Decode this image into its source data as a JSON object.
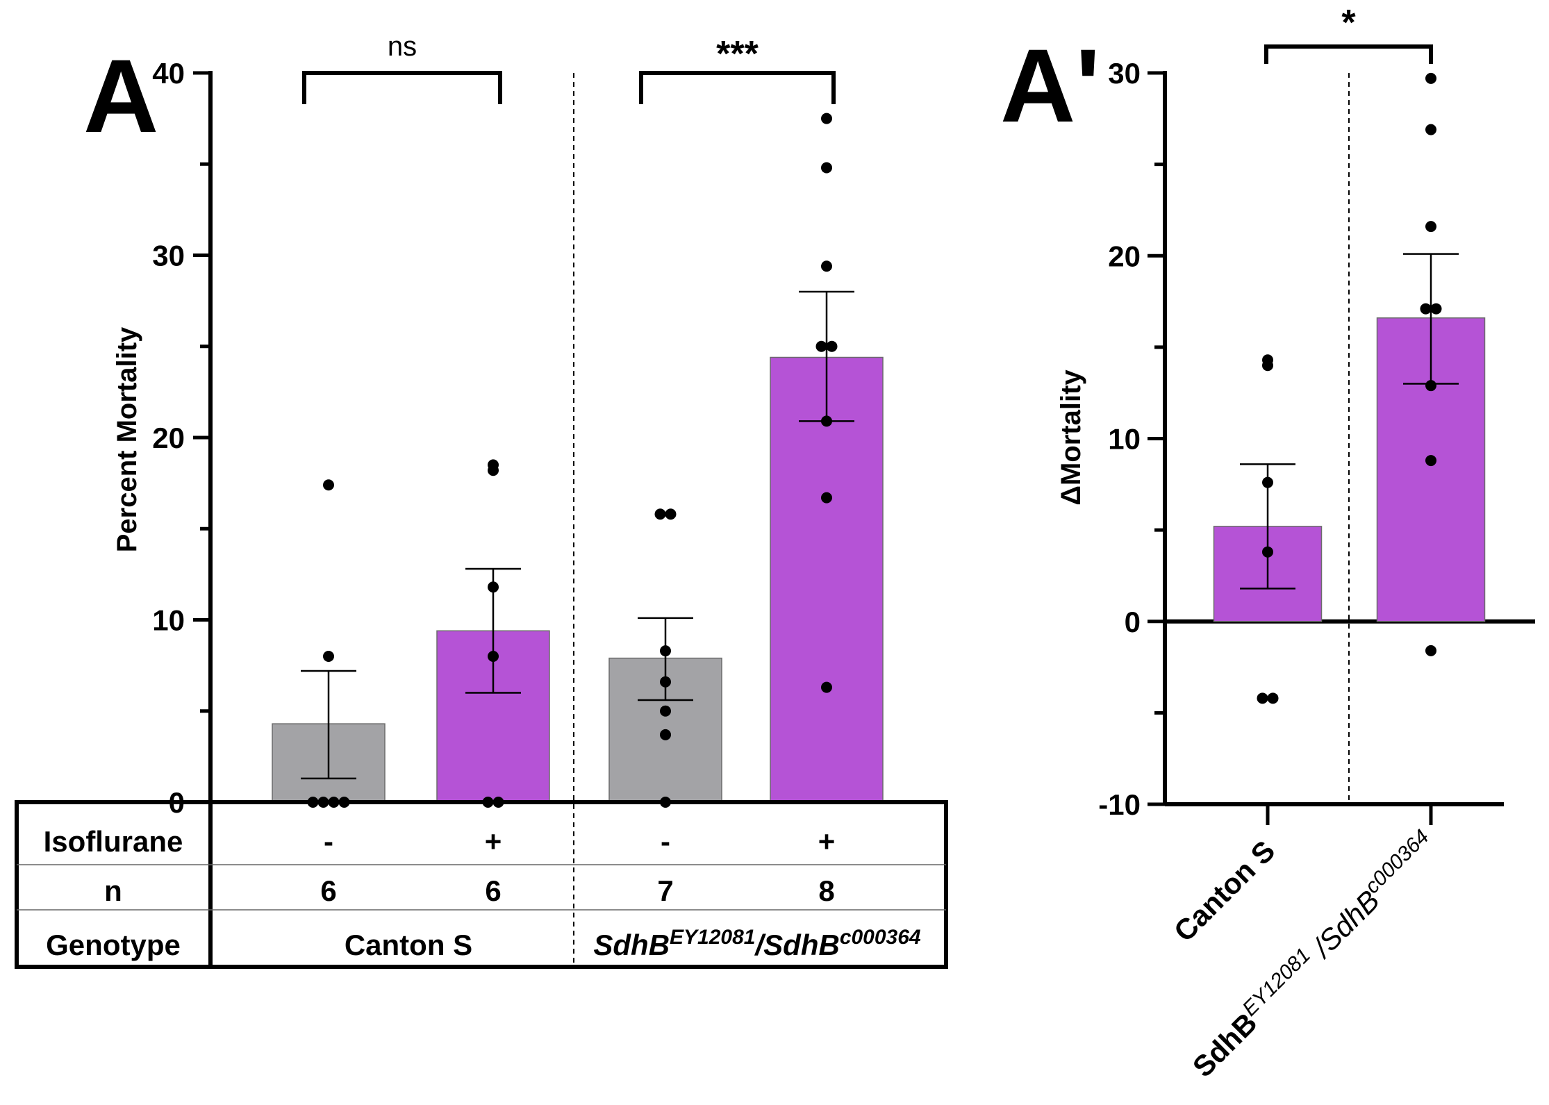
{
  "panel_a_label": "A",
  "panel_a2_label": "A'",
  "chart_data": [
    {
      "type": "bar",
      "panel": "A",
      "ylabel": "Percent Mortality",
      "ylim": [
        0,
        40
      ],
      "yticks": [
        "0",
        "10",
        "20",
        "30",
        "40"
      ],
      "colors": {
        "control": "#a3a3a6",
        "isoflurane": "#b553d6"
      },
      "bars": [
        {
          "genotype": "Canton S",
          "isoflurane": "-",
          "n": "6",
          "mean": 4.3,
          "sem_low": 1.3,
          "sem_high": 7.2,
          "points": [
            17.4,
            8.0,
            0,
            0,
            0,
            0
          ]
        },
        {
          "genotype": "Canton S",
          "isoflurane": "+",
          "n": "6",
          "mean": 9.4,
          "sem_low": 6.0,
          "sem_high": 12.8,
          "points": [
            18.2,
            18.5,
            11.8,
            8.0,
            0,
            0
          ]
        },
        {
          "genotype": "SdhB",
          "isoflurane": "-",
          "n": "7",
          "mean": 7.9,
          "sem_low": 5.6,
          "sem_high": 10.1,
          "points": [
            15.8,
            15.8,
            8.3,
            6.6,
            5.0,
            3.7,
            0
          ]
        },
        {
          "genotype": "SdhB",
          "isoflurane": "+",
          "n": "8",
          "mean": 24.4,
          "sem_low": 20.9,
          "sem_high": 28.0,
          "points": [
            37.5,
            34.8,
            29.4,
            25.0,
            25.0,
            20.9,
            16.7,
            6.3
          ]
        }
      ],
      "significance": [
        {
          "groups": [
            0,
            1
          ],
          "label": "ns"
        },
        {
          "groups": [
            2,
            3
          ],
          "label": "***"
        }
      ],
      "table": {
        "row_labels": {
          "isoflurane": "Isoflurane",
          "n": "n",
          "genotype": "Genotype"
        },
        "genotype_1": "Canton S",
        "genotype_2_parts": {
          "base_1": "SdhB",
          "sup_1": "EY12081",
          "sep": "/SdhB",
          "sup_2": "c000364"
        }
      }
    },
    {
      "type": "bar",
      "panel": "A'",
      "ylabel": "ΔMortality",
      "ylim": [
        -10,
        30
      ],
      "yticks": [
        "-10",
        "0",
        "10",
        "20",
        "30"
      ],
      "categories": [
        "Canton S",
        "SdhB"
      ],
      "xlabel_2_parts": {
        "base_1": "SdhB",
        "sup_1": "EY12081",
        "sep": " /SdhB",
        "sup_2": "c000364"
      },
      "bars": [
        {
          "mean": 5.2,
          "sem_low": 1.8,
          "sem_high": 8.6,
          "points": [
            14.0,
            14.3,
            7.6,
            3.8,
            -4.2,
            -4.2
          ]
        },
        {
          "mean": 16.6,
          "sem_low": 13.0,
          "sem_high": 20.1,
          "points": [
            29.7,
            26.9,
            21.6,
            17.1,
            17.1,
            12.9,
            8.8,
            -1.6
          ]
        }
      ],
      "significance": [
        {
          "groups": [
            0,
            1
          ],
          "label": "*"
        }
      ]
    }
  ]
}
